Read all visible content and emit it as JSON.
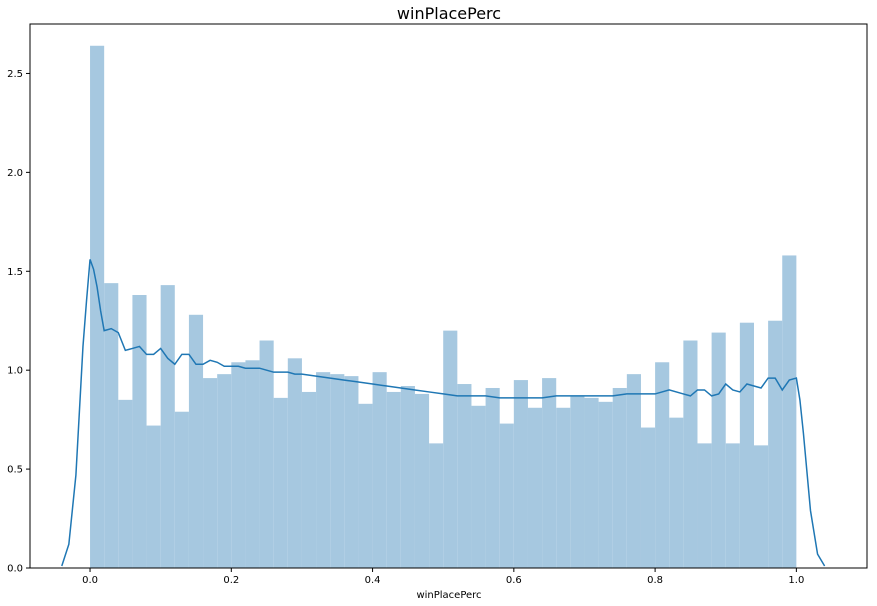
{
  "chart_data": {
    "type": "bar",
    "title": "winPlacePerc",
    "xlabel": "winPlacePerc",
    "ylabel": "",
    "xlim": [
      -0.085,
      1.1
    ],
    "ylim": [
      0,
      2.75
    ],
    "xticks": [
      0.0,
      0.2,
      0.4,
      0.6,
      0.8,
      1.0
    ],
    "xtick_labels": [
      "0.0",
      "0.2",
      "0.4",
      "0.6",
      "0.8",
      "1.0"
    ],
    "yticks": [
      0.0,
      0.5,
      1.0,
      1.5,
      2.0,
      2.5
    ],
    "ytick_labels": [
      "0.0",
      "0.5",
      "1.0",
      "1.5",
      "2.0",
      "2.5"
    ],
    "grid": false,
    "histogram": {
      "bin_edges": [
        0.0,
        0.02,
        0.04,
        0.06,
        0.08,
        0.1,
        0.12,
        0.14,
        0.16,
        0.18,
        0.2,
        0.22,
        0.24,
        0.26,
        0.28,
        0.3,
        0.32,
        0.34,
        0.36,
        0.38,
        0.4,
        0.42,
        0.44,
        0.46,
        0.48,
        0.5,
        0.52,
        0.54,
        0.56,
        0.58,
        0.6,
        0.62,
        0.64,
        0.66,
        0.68,
        0.7,
        0.72,
        0.74,
        0.76,
        0.78,
        0.8,
        0.82,
        0.84,
        0.86,
        0.88,
        0.9,
        0.92,
        0.94,
        0.96,
        0.98,
        1.0
      ],
      "values": [
        2.64,
        1.44,
        0.85,
        1.38,
        0.72,
        1.43,
        0.79,
        1.28,
        0.96,
        0.98,
        1.04,
        1.05,
        1.15,
        0.86,
        1.06,
        0.89,
        0.99,
        0.98,
        0.97,
        0.83,
        0.99,
        0.89,
        0.92,
        0.88,
        0.63,
        1.2,
        0.93,
        0.82,
        0.91,
        0.73,
        0.95,
        0.81,
        0.96,
        0.81,
        0.87,
        0.86,
        0.84,
        0.91,
        0.98,
        0.71,
        1.04,
        0.76,
        1.15,
        0.63,
        1.19,
        0.63,
        1.24,
        0.62,
        1.25,
        1.58
      ]
    },
    "kde": {
      "x": [
        -0.04,
        -0.03,
        -0.02,
        -0.01,
        -0.005,
        0.0,
        0.005,
        0.01,
        0.015,
        0.02,
        0.03,
        0.04,
        0.05,
        0.06,
        0.07,
        0.08,
        0.09,
        0.1,
        0.11,
        0.12,
        0.13,
        0.14,
        0.15,
        0.16,
        0.17,
        0.18,
        0.19,
        0.2,
        0.21,
        0.22,
        0.23,
        0.24,
        0.25,
        0.26,
        0.27,
        0.28,
        0.29,
        0.3,
        0.32,
        0.34,
        0.36,
        0.38,
        0.4,
        0.42,
        0.44,
        0.46,
        0.48,
        0.5,
        0.52,
        0.54,
        0.56,
        0.58,
        0.6,
        0.62,
        0.64,
        0.66,
        0.68,
        0.7,
        0.72,
        0.74,
        0.76,
        0.78,
        0.8,
        0.82,
        0.84,
        0.85,
        0.86,
        0.87,
        0.88,
        0.89,
        0.9,
        0.91,
        0.92,
        0.93,
        0.94,
        0.95,
        0.96,
        0.97,
        0.98,
        0.99,
        1.0,
        1.005,
        1.01,
        1.02,
        1.03,
        1.04
      ],
      "y": [
        0.01,
        0.12,
        0.47,
        1.12,
        1.35,
        1.56,
        1.51,
        1.42,
        1.3,
        1.2,
        1.21,
        1.19,
        1.1,
        1.11,
        1.12,
        1.08,
        1.08,
        1.11,
        1.06,
        1.03,
        1.08,
        1.08,
        1.03,
        1.03,
        1.05,
        1.04,
        1.02,
        1.02,
        1.02,
        1.01,
        1.01,
        1.01,
        1.0,
        0.99,
        0.99,
        0.99,
        0.98,
        0.98,
        0.97,
        0.96,
        0.95,
        0.94,
        0.93,
        0.92,
        0.91,
        0.9,
        0.89,
        0.88,
        0.87,
        0.87,
        0.87,
        0.86,
        0.86,
        0.86,
        0.86,
        0.87,
        0.87,
        0.87,
        0.87,
        0.87,
        0.88,
        0.88,
        0.88,
        0.9,
        0.88,
        0.87,
        0.9,
        0.9,
        0.87,
        0.88,
        0.93,
        0.9,
        0.89,
        0.93,
        0.92,
        0.91,
        0.96,
        0.96,
        0.9,
        0.95,
        0.96,
        0.85,
        0.68,
        0.29,
        0.07,
        0.01
      ]
    },
    "bar_color": "#a6c8e0",
    "line_color": "#1f77b4"
  }
}
